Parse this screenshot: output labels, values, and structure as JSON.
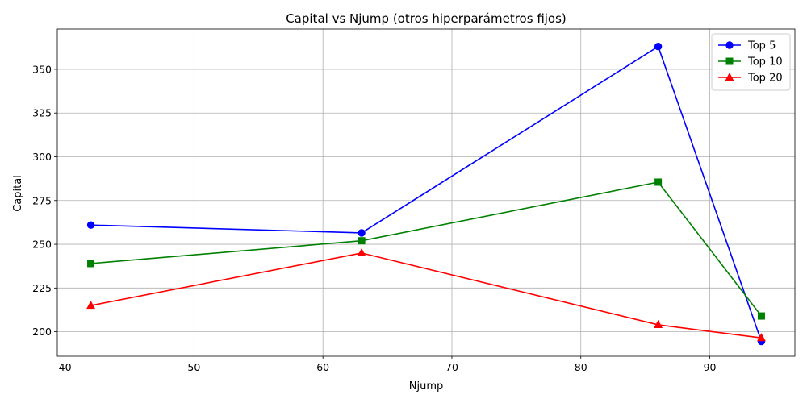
{
  "chart_data": {
    "type": "line",
    "title": "Capital vs Njump (otros hiperparámetros fijos)",
    "xlabel": "Njump",
    "ylabel": "Capital",
    "x": [
      42,
      63,
      86,
      94
    ],
    "xlim": [
      39.4,
      96.6
    ],
    "ylim": [
      186,
      373
    ],
    "xticks": [
      40,
      50,
      60,
      70,
      80,
      90
    ],
    "yticks": [
      200,
      225,
      250,
      275,
      300,
      325,
      350
    ],
    "grid": true,
    "legend_position": "top-right",
    "series": [
      {
        "name": "Top 5",
        "values": [
          261,
          256.5,
          363,
          194.5
        ],
        "color": "#0000ff",
        "marker": "circle"
      },
      {
        "name": "Top 10",
        "values": [
          239,
          252,
          285.5,
          209
        ],
        "color": "#008000",
        "marker": "square"
      },
      {
        "name": "Top 20",
        "values": [
          215,
          245,
          204,
          196.5
        ],
        "color": "#ff0000",
        "marker": "triangle"
      }
    ]
  }
}
